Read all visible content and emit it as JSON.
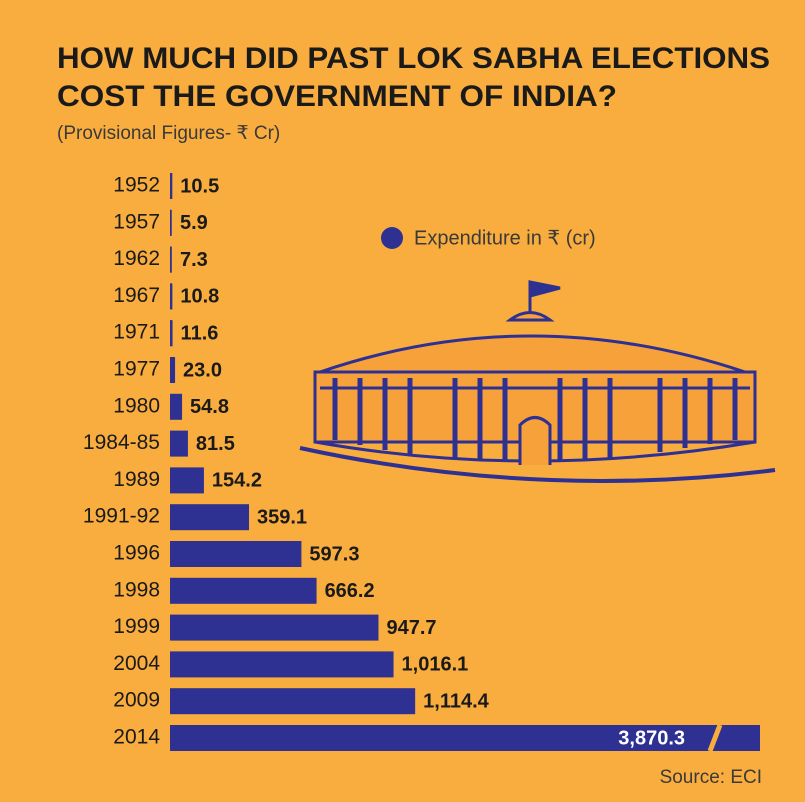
{
  "chart_data": {
    "type": "bar",
    "orientation": "horizontal",
    "title": [
      "HOW MUCH DID PAST LOK SABHA ELECTIONS",
      "COST THE GOVERNMENT OF INDIA?"
    ],
    "subtitle": "(Provisional Figures- ₹ Cr)",
    "source": "Source: ECI",
    "series": [
      {
        "name": "Expenditure in ₹ (cr)",
        "color": "#2e3192",
        "values": [
          10.5,
          5.9,
          7.3,
          10.8,
          11.6,
          23.0,
          54.8,
          81.5,
          154.2,
          359.1,
          597.3,
          666.2,
          947.7,
          1016.1,
          1114.4,
          3870.3
        ],
        "value_labels": [
          "10.5",
          "5.9",
          "7.3",
          "10.8",
          "11.6",
          "23.0",
          "54.8",
          "81.5",
          "154.2",
          "359.1",
          "597.3",
          "666.2",
          "947.7",
          "1,016.1",
          "1,114.4",
          "3,870.3"
        ]
      }
    ],
    "categories": [
      "1952",
      "1957",
      "1962",
      "1967",
      "1971",
      "1977",
      "1980",
      "1984-85",
      "1989",
      "1991-92",
      "1996",
      "1998",
      "1999",
      "2004",
      "2009",
      "2014"
    ]
  }
}
